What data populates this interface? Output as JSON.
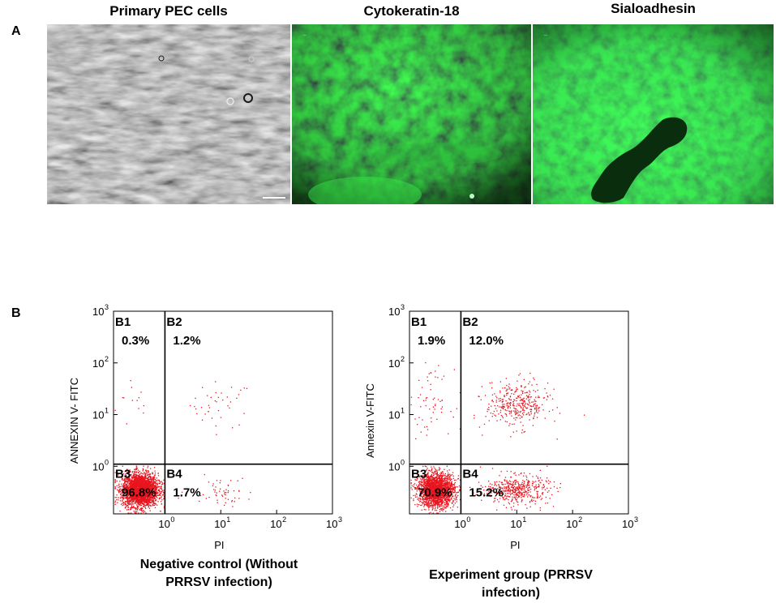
{
  "panels": {
    "a_label": "A",
    "b_label": "B"
  },
  "images": [
    {
      "title": "Primary PEC cells",
      "style": "brightfield",
      "color": "#7a7a7a"
    },
    {
      "title": "Cytokeratin-18",
      "style": "fluorescence",
      "color": "#1fd62c"
    },
    {
      "title": "Sialoadhesin",
      "style": "fluorescence",
      "color": "#22e031"
    }
  ],
  "chart_data": [
    {
      "type": "scatter",
      "xlabel": "PI",
      "ylabel": "ANNEXIN V- FITC",
      "xscale": "log",
      "yscale": "log",
      "xlim": [
        0.12,
        1000
      ],
      "ylim": [
        0.12,
        1000
      ],
      "x_ticks": [
        {
          "base": "10",
          "exp": "0"
        },
        {
          "base": "10",
          "exp": "1"
        },
        {
          "base": "10",
          "exp": "2"
        },
        {
          "base": "10",
          "exp": "3"
        }
      ],
      "y_ticks": [
        {
          "base": "10",
          "exp": "0"
        },
        {
          "base": "10",
          "exp": "1"
        },
        {
          "base": "10",
          "exp": "2"
        },
        {
          "base": "10",
          "exp": "3"
        }
      ],
      "gate": {
        "x": 1.0,
        "y": 1.1
      },
      "point_color": "#e8141e",
      "quadrants": [
        {
          "name": "B1",
          "percent": "0.3%",
          "value": 0.3
        },
        {
          "name": "B2",
          "percent": "1.2%",
          "value": 1.2
        },
        {
          "name": "B3",
          "percent": "96.8%",
          "value": 96.8
        },
        {
          "name": "B4",
          "percent": "1.7%",
          "value": 1.7
        }
      ],
      "caption": [
        "Negative control (Without",
        "PRRSV infection)"
      ]
    },
    {
      "type": "scatter",
      "xlabel": "PI",
      "ylabel": "Annexin V-FITC",
      "xscale": "log",
      "yscale": "log",
      "xlim": [
        0.12,
        1000
      ],
      "ylim": [
        0.12,
        1000
      ],
      "x_ticks": [
        {
          "base": "10",
          "exp": "0"
        },
        {
          "base": "10",
          "exp": "1"
        },
        {
          "base": "10",
          "exp": "2"
        },
        {
          "base": "10",
          "exp": "3"
        }
      ],
      "y_ticks": [
        {
          "base": "10",
          "exp": "0"
        },
        {
          "base": "10",
          "exp": "1"
        },
        {
          "base": "10",
          "exp": "2"
        },
        {
          "base": "10",
          "exp": "3"
        }
      ],
      "gate": {
        "x": 1.0,
        "y": 1.1
      },
      "point_color": "#e8141e",
      "quadrants": [
        {
          "name": "B1",
          "percent": "1.9%",
          "value": 1.9
        },
        {
          "name": "B2",
          "percent": "12.0%",
          "value": 12.0
        },
        {
          "name": "B3",
          "percent": "70.9%",
          "value": 70.9
        },
        {
          "name": "B4",
          "percent": "15.2%",
          "value": 15.2
        }
      ],
      "caption": [
        "Experiment group  (PRRSV",
        "infection)"
      ]
    }
  ]
}
